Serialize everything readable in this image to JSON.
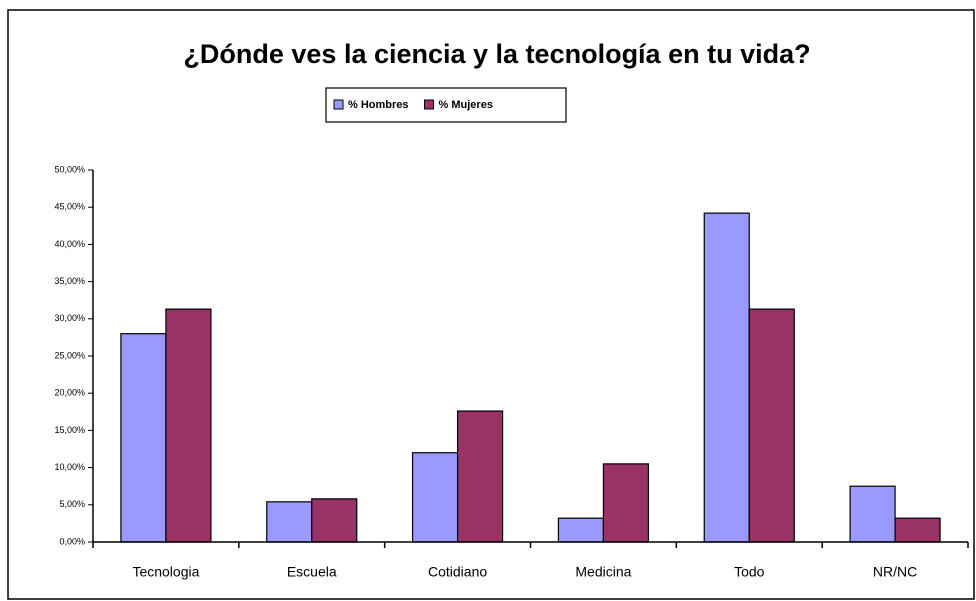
{
  "chart_data": {
    "type": "bar",
    "title": "¿Dónde ves la ciencia y la tecnología en tu vida?",
    "categories": [
      "Tecnologia",
      "Escuela",
      "Cotidiano",
      "Medicina",
      "Todo",
      "NR/NC"
    ],
    "series": [
      {
        "name": "% Hombres",
        "color": "#9999ff",
        "values": [
          28,
          5.4,
          12,
          3.2,
          44.2,
          7.5
        ]
      },
      {
        "name": "% Mujeres",
        "color": "#993366",
        "values": [
          31.3,
          5.8,
          17.6,
          10.5,
          31.3,
          3.2
        ]
      }
    ],
    "ylim": [
      0,
      50
    ],
    "yticks": [
      {
        "value": 0,
        "label": "0,00%"
      },
      {
        "value": 5,
        "label": "5,00%"
      },
      {
        "value": 10,
        "label": "10,00%"
      },
      {
        "value": 15,
        "label": "15,00%"
      },
      {
        "value": 20,
        "label": "20,00%"
      },
      {
        "value": 25,
        "label": "25,00%"
      },
      {
        "value": 30,
        "label": "30,00%"
      },
      {
        "value": 35,
        "label": "35,00%"
      },
      {
        "value": 40,
        "label": "40,00%"
      },
      {
        "value": 45,
        "label": "45,00%"
      },
      {
        "value": 50,
        "label": "50,00%"
      }
    ],
    "legend": "top"
  }
}
